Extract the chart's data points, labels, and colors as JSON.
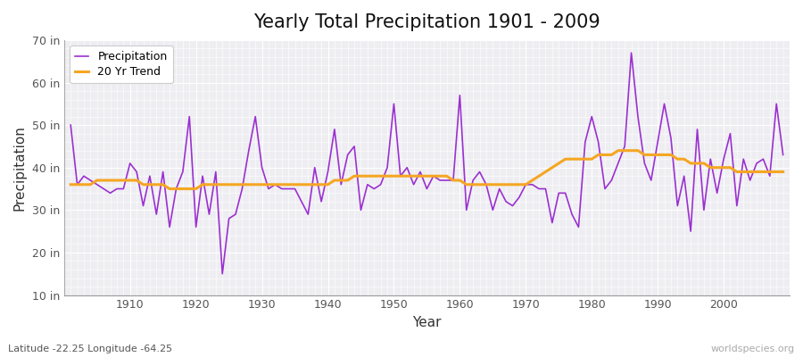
{
  "title": "Yearly Total Precipitation 1901 - 2009",
  "xlabel": "Year",
  "ylabel": "Precipitation",
  "lat_lon_label": "Latitude -22.25 Longitude -64.25",
  "watermark": "worldspecies.org",
  "years": [
    1901,
    1902,
    1903,
    1904,
    1905,
    1906,
    1907,
    1908,
    1909,
    1910,
    1911,
    1912,
    1913,
    1914,
    1915,
    1916,
    1917,
    1918,
    1919,
    1920,
    1921,
    1922,
    1923,
    1924,
    1925,
    1926,
    1927,
    1928,
    1929,
    1930,
    1931,
    1932,
    1933,
    1934,
    1935,
    1936,
    1937,
    1938,
    1939,
    1940,
    1941,
    1942,
    1943,
    1944,
    1945,
    1946,
    1947,
    1948,
    1949,
    1950,
    1951,
    1952,
    1953,
    1954,
    1955,
    1956,
    1957,
    1958,
    1959,
    1960,
    1961,
    1962,
    1963,
    1964,
    1965,
    1966,
    1967,
    1968,
    1969,
    1970,
    1971,
    1972,
    1973,
    1974,
    1975,
    1976,
    1977,
    1978,
    1979,
    1980,
    1981,
    1982,
    1983,
    1984,
    1985,
    1986,
    1987,
    1988,
    1989,
    1990,
    1991,
    1992,
    1993,
    1994,
    1995,
    1996,
    1997,
    1998,
    1999,
    2000,
    2001,
    2002,
    2003,
    2004,
    2005,
    2006,
    2007,
    2008,
    2009
  ],
  "precip": [
    50,
    36,
    38,
    37,
    36,
    35,
    34,
    35,
    35,
    41,
    39,
    31,
    38,
    29,
    39,
    26,
    35,
    39,
    52,
    26,
    38,
    29,
    39,
    15,
    28,
    29,
    35,
    44,
    52,
    40,
    35,
    36,
    35,
    35,
    35,
    32,
    29,
    40,
    32,
    39,
    49,
    36,
    43,
    45,
    30,
    36,
    35,
    36,
    40,
    55,
    38,
    40,
    36,
    39,
    35,
    38,
    37,
    37,
    37,
    57,
    30,
    37,
    39,
    36,
    30,
    35,
    32,
    31,
    33,
    36,
    36,
    35,
    35,
    27,
    34,
    34,
    29,
    26,
    46,
    52,
    46,
    35,
    37,
    41,
    45,
    67,
    52,
    41,
    37,
    46,
    55,
    47,
    31,
    38,
    25,
    49,
    30,
    42,
    34,
    42,
    48,
    31,
    42,
    37,
    41,
    42,
    38,
    55,
    43
  ],
  "trend": [
    36,
    36,
    36,
    36,
    37,
    37,
    37,
    37,
    37,
    37,
    37,
    36,
    36,
    36,
    36,
    35,
    35,
    35,
    35,
    35,
    36,
    36,
    36,
    36,
    36,
    36,
    36,
    36,
    36,
    36,
    36,
    36,
    36,
    36,
    36,
    36,
    36,
    36,
    36,
    36,
    37,
    37,
    37,
    38,
    38,
    38,
    38,
    38,
    38,
    38,
    38,
    38,
    38,
    38,
    38,
    38,
    38,
    38,
    37,
    37,
    36,
    36,
    36,
    36,
    36,
    36,
    36,
    36,
    36,
    36,
    37,
    38,
    39,
    40,
    41,
    42,
    42,
    42,
    42,
    42,
    43,
    43,
    43,
    44,
    44,
    44,
    44,
    43,
    43,
    43,
    43,
    43,
    42,
    42,
    41,
    41,
    41,
    40,
    40,
    40,
    40,
    39,
    39,
    39,
    39,
    39,
    39,
    39,
    39
  ],
  "precip_color": "#9b30d0",
  "trend_color": "#f5a623",
  "fig_bg_color": "#ffffff",
  "plot_bg_color": "#eeeef2",
  "grid_color": "#ffffff",
  "ylim_min": 10,
  "ylim_max": 70,
  "yticks": [
    10,
    20,
    30,
    40,
    50,
    60,
    70
  ],
  "ytick_labels": [
    "10 in",
    "20 in",
    "30 in",
    "40 in",
    "50 in",
    "60 in",
    "70 in"
  ],
  "xtick_years": [
    1910,
    1920,
    1930,
    1940,
    1950,
    1960,
    1970,
    1980,
    1990,
    2000
  ],
  "title_fontsize": 15,
  "axis_label_fontsize": 11,
  "tick_fontsize": 9,
  "legend_label_precip": "Precipitation",
  "legend_label_trend": "20 Yr Trend",
  "lat_lon_fontsize": 8,
  "watermark_fontsize": 8
}
